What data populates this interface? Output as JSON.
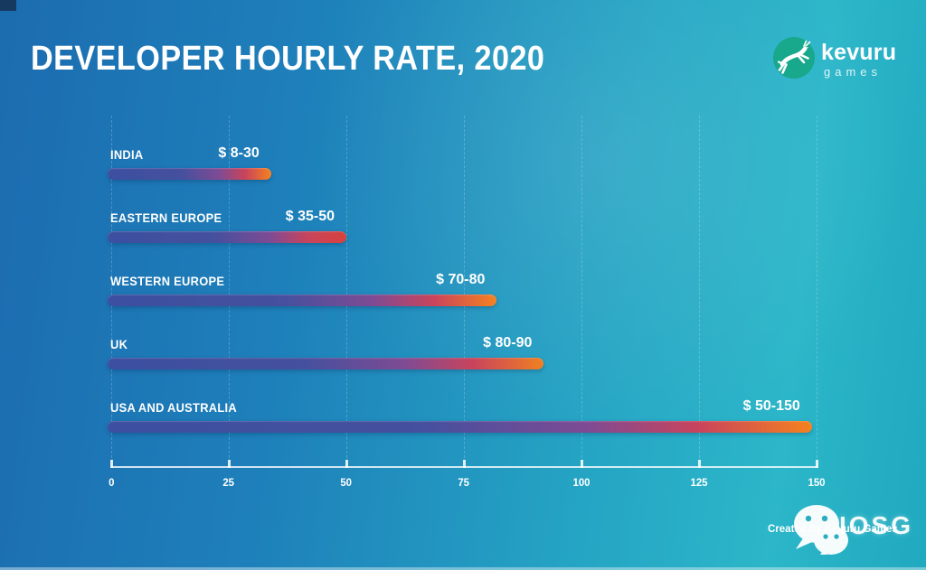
{
  "title": "DEVELOPER HOURLY RATE, 2020",
  "logo": {
    "brand": "kevuru",
    "sub": "games",
    "icon": "gazelle-icon",
    "circle_color": "#18a88c"
  },
  "chart_data": {
    "type": "bar",
    "orientation": "horizontal",
    "title": "DEVELOPER HOURLY RATE, 2020",
    "xlabel": "",
    "ylabel": "",
    "xlim": [
      0,
      150
    ],
    "grid": "vertical-dashed",
    "axis_ticks": [
      0,
      25,
      50,
      75,
      100,
      125,
      150
    ],
    "categories": [
      "INDIA",
      "EASTERN EUROPE",
      "WESTERN EUROPE",
      "UK",
      "USA AND AUSTRALIA"
    ],
    "value_labels": [
      "$ 8-30",
      "$ 35-50",
      "$ 70-80",
      "$ 80-90",
      "$ 50-150"
    ],
    "rate_ranges_usd": [
      [
        8,
        30
      ],
      [
        35,
        50
      ],
      [
        70,
        80
      ],
      [
        80,
        90
      ],
      [
        50,
        150
      ]
    ],
    "bars": [
      {
        "label": "INDIA",
        "value_label": "$ 8-30",
        "bar_end": 34,
        "tip_color": "#f5821f"
      },
      {
        "label": "EASTERN EUROPE",
        "value_label": "$ 35-50",
        "bar_end": 50,
        "tip_color": "#d6423d"
      },
      {
        "label": "WESTERN EUROPE",
        "value_label": "$ 70-80",
        "bar_end": 82,
        "tip_color": "#f5821f"
      },
      {
        "label": "UK",
        "value_label": "$ 80-90",
        "bar_end": 92,
        "tip_color": "#f08021"
      },
      {
        "label": "USA AND AUSTRALIA",
        "value_label": "$ 50-150",
        "bar_end": 149,
        "tip_color": "#f5821f"
      }
    ],
    "bar_gradient_base": [
      "#3c4fa0",
      "#45509e",
      "#7e4b94",
      "#c9445c"
    ],
    "legend": "none"
  },
  "footer": {
    "credit": "Created by Kevuru Games",
    "watermark": "IOSG",
    "watermark_icon": "wechat-icon"
  },
  "colors": {
    "background_left": "#1c6cb0",
    "background_right": "#2cb6c9",
    "text": "#ffffff",
    "axis": "#ffffff"
  }
}
